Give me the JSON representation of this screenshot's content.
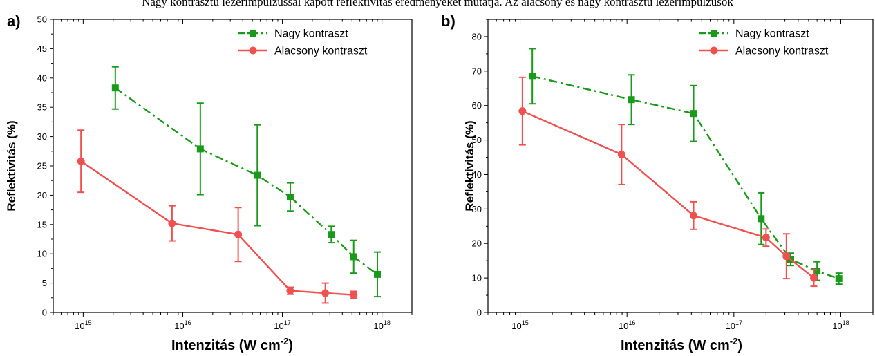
{
  "header_fragment": "Nagy kontrasztú lézerimpulzussal kapott reflektivitás eredményeket mutatja. Az alacsony és nagy kontrasztú lézerimpulzusok",
  "colors": {
    "nagy": "#1a9a1a",
    "alacsony": "#f05050"
  },
  "chart_data": [
    {
      "panel_label": "a)",
      "type": "line",
      "xscale": "log",
      "xlim": [
        500000000000000.0,
        2e+18
      ],
      "ylim": [
        0,
        50
      ],
      "yticks": [
        0,
        5,
        10,
        15,
        20,
        25,
        30,
        35,
        40,
        45,
        50
      ],
      "xticks": [
        {
          "value": 1000000000000000.0,
          "base": "10",
          "exp": "15"
        },
        {
          "value": 1e+16,
          "base": "10",
          "exp": "16"
        },
        {
          "value": 1e+17,
          "base": "10",
          "exp": "17"
        },
        {
          "value": 1e+18,
          "base": "10",
          "exp": "18"
        }
      ],
      "xlabel": {
        "main": "Intenzitás (W cm",
        "sup": "-2",
        "end": ")"
      },
      "ylabel": "Reflektivitás (%)",
      "legend_position": "top-right",
      "series": [
        {
          "name": "Nagy kontraszt",
          "color": "#1a9a1a",
          "marker": "square",
          "line_style": "dash-dot",
          "x": [
            2100000000000000.0,
            1.5e+16,
            5.6e+16,
            1.2e+17,
            3.1e+17,
            5.2e+17,
            9e+17
          ],
          "y": [
            38.3,
            27.9,
            23.4,
            19.7,
            13.3,
            9.5,
            6.5
          ],
          "err": [
            3.6,
            7.8,
            8.6,
            2.4,
            1.4,
            2.8,
            3.8
          ]
        },
        {
          "name": "Alacsony kontraszt",
          "color": "#f05050",
          "marker": "circle",
          "line_style": "solid",
          "x": [
            950000000000000.0,
            7800000000000000.0,
            3.6e+16,
            1.2e+17,
            2.7e+17,
            5.2e+17
          ],
          "y": [
            25.8,
            15.2,
            13.3,
            3.7,
            3.3,
            3.0
          ],
          "err": [
            5.3,
            3.0,
            4.6,
            0.6,
            1.7,
            0.6
          ]
        }
      ]
    },
    {
      "panel_label": "b)",
      "type": "line",
      "xscale": "log",
      "xlim": [
        500000000000000.0,
        2e+18
      ],
      "ylim": [
        0,
        85
      ],
      "yticks": [
        0,
        10,
        20,
        30,
        40,
        50,
        60,
        70,
        80
      ],
      "xticks": [
        {
          "value": 1000000000000000.0,
          "base": "10",
          "exp": "15"
        },
        {
          "value": 1e+16,
          "base": "10",
          "exp": "16"
        },
        {
          "value": 1e+17,
          "base": "10",
          "exp": "17"
        },
        {
          "value": 1e+18,
          "base": "10",
          "exp": "18"
        }
      ],
      "xlabel": {
        "main": "Intenzitás (W cm",
        "sup": "-2",
        "end": ")"
      },
      "ylabel": "Reflektivitás (%)",
      "legend_position": "top-right",
      "series": [
        {
          "name": "Nagy kontraszt",
          "color": "#1a9a1a",
          "marker": "square",
          "line_style": "dash-dot",
          "x": [
            1300000000000000.0,
            1.1e+16,
            4.2e+16,
            1.8e+17,
            3.4e+17,
            6e+17,
            9.6e+17
          ],
          "y": [
            68.5,
            61.7,
            57.7,
            27.2,
            15.4,
            12.0,
            9.8
          ],
          "err": [
            8.0,
            7.2,
            8.1,
            7.5,
            1.8,
            2.7,
            1.6
          ]
        },
        {
          "name": "Alacsony kontraszt",
          "color": "#f05050",
          "marker": "circle",
          "line_style": "solid",
          "x": [
            1050000000000000.0,
            8900000000000000.0,
            4.2e+16,
            2e+17,
            3.1e+17,
            5.6e+17
          ],
          "y": [
            58.4,
            45.8,
            28.1,
            21.7,
            16.3,
            10.0
          ],
          "err": [
            9.8,
            8.7,
            4.0,
            2.5,
            6.5,
            2.4
          ]
        }
      ]
    }
  ]
}
